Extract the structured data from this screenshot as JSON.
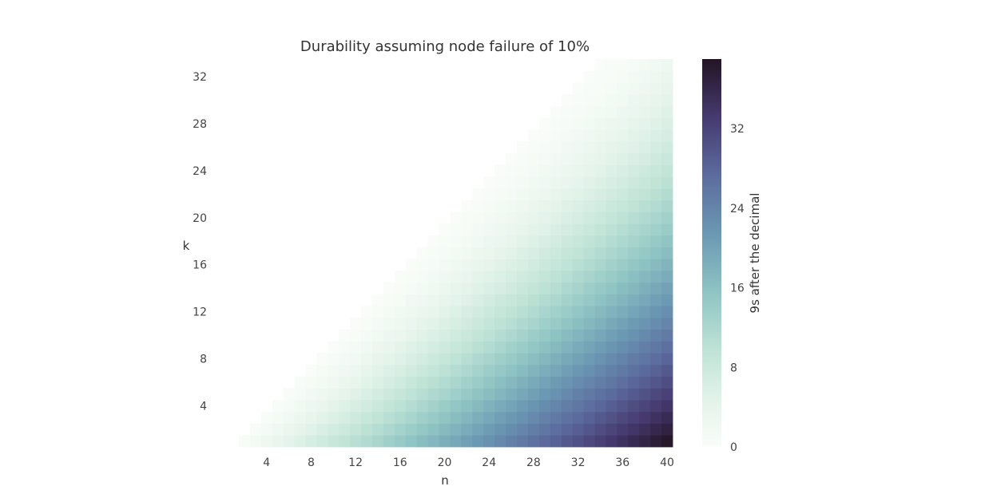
{
  "chart_data": {
    "type": "heatmap",
    "title": "Durability assuming node failure of 10%",
    "xlabel": "n",
    "ylabel": "k",
    "x_range": [
      1,
      40
    ],
    "y_range": [
      1,
      33
    ],
    "x_ticks": [
      4,
      8,
      12,
      16,
      20,
      24,
      28,
      32,
      36,
      40
    ],
    "y_ticks": [
      4,
      8,
      12,
      16,
      20,
      24,
      28,
      32
    ],
    "value_rule": "cells exist where k < n; value ≈ 9s after the decimal (upper-triangle k >= n is blank)",
    "value_range": [
      0,
      39
    ],
    "colorbar": {
      "label": "9s after the decimal",
      "ticks": [
        0,
        8,
        16,
        24,
        32
      ],
      "range": [
        0,
        39
      ],
      "colormap": "cubehelix light-to-dark (white → mint → teal-blue → indigo → near-black)"
    },
    "grid": false,
    "sample_values": [
      {
        "n": 2,
        "k": 1,
        "value": 1
      },
      {
        "n": 10,
        "k": 5,
        "value": 3
      },
      {
        "n": 20,
        "k": 10,
        "value": 6
      },
      {
        "n": 40,
        "k": 1,
        "value": 39
      },
      {
        "n": 40,
        "k": 20,
        "value": 12
      },
      {
        "n": 40,
        "k": 33,
        "value": 2
      }
    ]
  }
}
